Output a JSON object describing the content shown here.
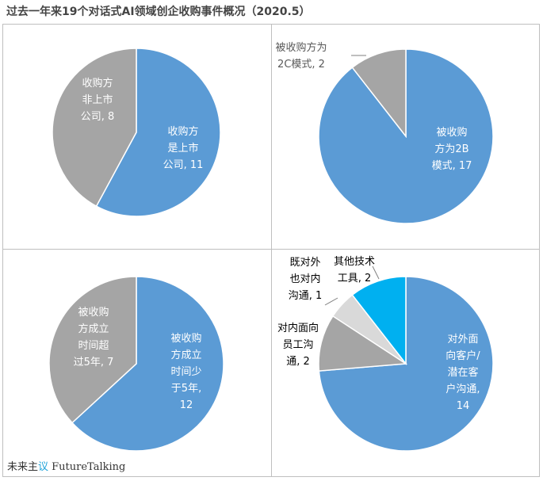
{
  "title": "过去一年来19个对话式AI领域创企收购事件概况（2020.5）",
  "watermark": {
    "prefix": "未来主",
    "highlight": "议",
    "suffix": " FutureTalking"
  },
  "colors": {
    "blue": "#5b9bd5",
    "gray": "#a5a5a5",
    "light_gray": "#d9d9d9",
    "cyan": "#00b0f0"
  },
  "chart_data": [
    {
      "type": "pie",
      "slices": [
        {
          "label": [
            "收购方",
            "是上市",
            "公司, 11"
          ],
          "value": 11,
          "color": "#5b9bd5"
        },
        {
          "label": [
            "收购方",
            "非上市",
            "公司, 8"
          ],
          "value": 8,
          "color": "#a5a5a5"
        }
      ]
    },
    {
      "type": "pie",
      "slices": [
        {
          "label": [
            "被收购",
            "方为2B",
            "模式, 17"
          ],
          "value": 17,
          "color": "#5b9bd5"
        },
        {
          "label": [
            "被收购方为",
            "2C模式, 2"
          ],
          "value": 2,
          "color": "#a5a5a5"
        }
      ]
    },
    {
      "type": "pie",
      "slices": [
        {
          "label": [
            "被收购",
            "方成立",
            "时间少",
            "于5年,",
            "12"
          ],
          "value": 12,
          "color": "#5b9bd5"
        },
        {
          "label": [
            "被收购",
            "方成立",
            "时间超",
            "过5年, 7"
          ],
          "value": 7,
          "color": "#a5a5a5"
        }
      ]
    },
    {
      "type": "pie",
      "slices": [
        {
          "label": [
            "对外面",
            "向客户/",
            "潜在客",
            "户沟通,",
            "14"
          ],
          "value": 14,
          "color": "#5b9bd5"
        },
        {
          "label": [
            "对内面向",
            "员工沟",
            "通, 2"
          ],
          "value": 2,
          "color": "#a5a5a5"
        },
        {
          "label": [
            "既对外",
            "也对内",
            "沟通, 1"
          ],
          "value": 1,
          "color": "#d9d9d9"
        },
        {
          "label": [
            "其他技术",
            "工具, 2"
          ],
          "value": 2,
          "color": "#00b0f0"
        }
      ]
    }
  ]
}
